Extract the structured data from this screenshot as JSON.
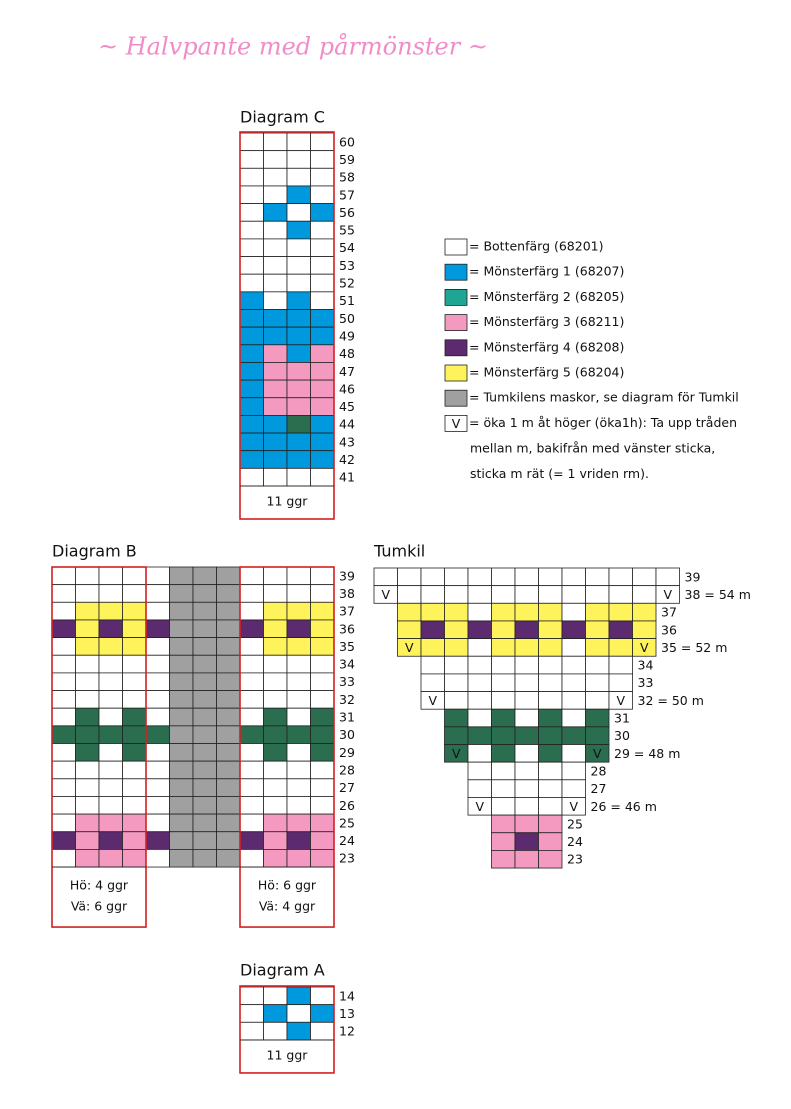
{
  "header": {
    "title": "~ Halvpante med pårmönster ~"
  },
  "diagram_c": {
    "title": "Diagram C",
    "rows": [
      "60",
      "59",
      "58",
      "57",
      "56",
      "55",
      "54",
      "53",
      "52",
      "51",
      "50",
      "49",
      "48",
      "47",
      "46",
      "45",
      "44",
      "43",
      "42",
      "41"
    ],
    "note": "11 ggr"
  },
  "legend": [
    {
      "label": "= Bottenfärg (68201)"
    },
    {
      "label": "= Mönsterfärg 1 (68207)"
    },
    {
      "label": "= Mönsterfärg 2 (68205)"
    },
    {
      "label": "= Mönsterfärg 3 (68211)"
    },
    {
      "label": "= Mönsterfärg 4 (68208)"
    },
    {
      "label": "= Mönsterfärg 5 (68204)"
    },
    {
      "label": "= Tumkilens maskor, se diagram för Tumkil"
    },
    {
      "symbol": "V",
      "lines": [
        "= öka 1 m åt höger (öka1h): Ta upp tråden",
        "mellan m, bakifrån med vänster sticka,",
        "sticka m rät (= 1 vriden rm)."
      ]
    }
  ],
  "diagram_b": {
    "title": "Diagram B",
    "rows": [
      "39",
      "38",
      "37",
      "36",
      "35",
      "34",
      "33",
      "32",
      "31",
      "30",
      "29",
      "28",
      "27",
      "26",
      "25",
      "24",
      "23"
    ],
    "notes": [
      [
        "Hö: 4 ggr",
        "Vä: 6 ggr"
      ],
      [
        "Hö: 6 ggr",
        "Vä: 4 ggr"
      ]
    ]
  },
  "tumkil": {
    "title": "Tumkil",
    "rows": [
      "39",
      "38 = 54 m",
      "37",
      "36",
      "35 = 52 m",
      "34",
      "33",
      "32 = 50 m",
      "31",
      "30",
      "29 = 48 m",
      "28",
      "27",
      "26 = 46 m",
      "25",
      "24",
      "23"
    ]
  },
  "diagram_a": {
    "title": "Diagram A",
    "rows": [
      "14",
      "13",
      "12"
    ],
    "note": "11 ggr"
  }
}
